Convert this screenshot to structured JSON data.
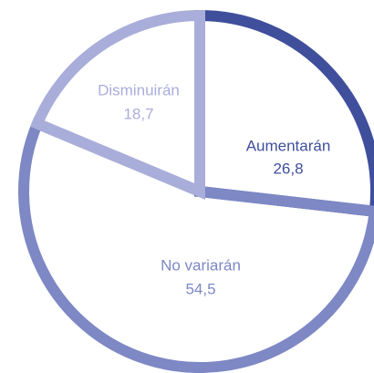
{
  "chart_data": {
    "type": "pie",
    "categories": [
      "Aumentarán",
      "No variarán",
      "Disminuirán"
    ],
    "values": [
      26.8,
      54.5,
      18.7
    ],
    "value_labels": [
      "26,8",
      "54,5",
      "18,7"
    ],
    "colors": [
      "#3f4f9c",
      "#7d88c4",
      "#a9add9"
    ]
  }
}
